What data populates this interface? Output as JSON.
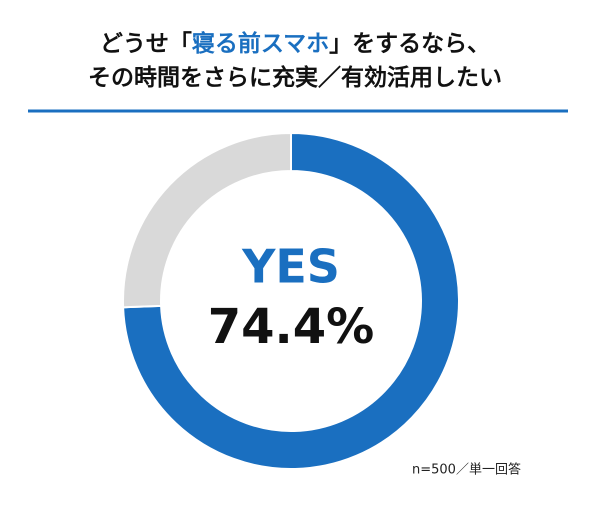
{
  "chart_data": {
    "type": "donut",
    "title_lines": [
      [
        {
          "text": "どうせ「"
        },
        {
          "text": "寝る前スマホ",
          "highlight": true
        },
        {
          "text": "」をするなら、"
        }
      ],
      [
        {
          "text": "その時間をさらに充実／有効活用したい"
        }
      ]
    ],
    "highlight_color": "#1a6fc0",
    "categories": [
      "YES",
      null
    ],
    "values": [
      74.4,
      25.6
    ],
    "value_labels": [
      "74.4%",
      null
    ],
    "colors": [
      "#1a6fc0",
      "#d9d9d9"
    ],
    "note": "n=500／単一回答"
  }
}
